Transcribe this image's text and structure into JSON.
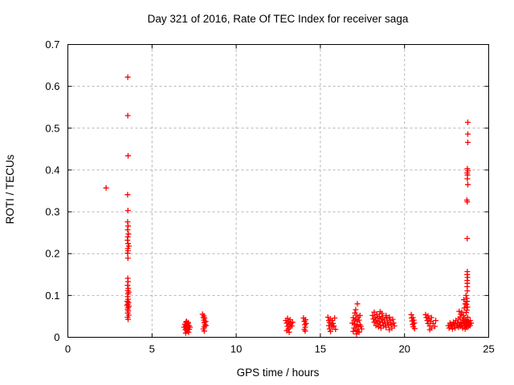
{
  "page": {
    "background": "#ffffff"
  },
  "chart_data": {
    "type": "scatter",
    "title": "Day 321 of 2016, Rate Of TEC Index for receiver saga",
    "xlabel": "GPS time / hours",
    "ylabel": "ROTI / TECUs",
    "xlim": [
      0,
      25
    ],
    "ylim": [
      0,
      0.7
    ],
    "xticks": [
      {
        "value": 0,
        "label": "0"
      },
      {
        "value": 5,
        "label": "5"
      },
      {
        "value": 10,
        "label": "10"
      },
      {
        "value": 15,
        "label": "15"
      },
      {
        "value": 20,
        "label": "20"
      },
      {
        "value": 25,
        "label": "25"
      }
    ],
    "yticks": [
      {
        "value": 0,
        "label": "0"
      },
      {
        "value": 0.1,
        "label": "0.1"
      },
      {
        "value": 0.2,
        "label": "0.2"
      },
      {
        "value": 0.3,
        "label": "0.3"
      },
      {
        "value": 0.4,
        "label": "0.4"
      },
      {
        "value": 0.5,
        "label": "0.5"
      },
      {
        "value": 0.6,
        "label": "0.6"
      },
      {
        "value": 0.7,
        "label": "0.7"
      }
    ],
    "grid": true,
    "legend_position": "none",
    "marker": {
      "shape": "plus",
      "color": "#ff0000",
      "size": 7
    },
    "axis_color": "#000000",
    "grid_color": "#b3b3b3",
    "series": [
      {
        "name": "ROTI",
        "points": [
          [
            2.27,
            0.357
          ],
          [
            3.56,
            0.622
          ],
          [
            3.56,
            0.53
          ],
          [
            3.58,
            0.434
          ],
          [
            3.55,
            0.341
          ],
          [
            3.57,
            0.303
          ],
          [
            3.55,
            0.276
          ],
          [
            3.58,
            0.266
          ],
          [
            3.55,
            0.257
          ],
          [
            3.6,
            0.247
          ],
          [
            3.56,
            0.24
          ],
          [
            3.54,
            0.232
          ],
          [
            3.58,
            0.224
          ],
          [
            3.62,
            0.218
          ],
          [
            3.56,
            0.212
          ],
          [
            3.57,
            0.207
          ],
          [
            3.55,
            0.201
          ],
          [
            3.57,
            0.189
          ],
          [
            3.56,
            0.141
          ],
          [
            3.58,
            0.133
          ],
          [
            3.55,
            0.124
          ],
          [
            3.59,
            0.117
          ],
          [
            3.56,
            0.112
          ],
          [
            3.61,
            0.108
          ],
          [
            3.57,
            0.104
          ],
          [
            3.55,
            0.097
          ],
          [
            3.58,
            0.091
          ],
          [
            3.53,
            0.086
          ],
          [
            3.6,
            0.083
          ],
          [
            3.56,
            0.079
          ],
          [
            3.51,
            0.076
          ],
          [
            3.63,
            0.074
          ],
          [
            3.57,
            0.071
          ],
          [
            3.55,
            0.067
          ],
          [
            3.59,
            0.063
          ],
          [
            3.56,
            0.058
          ],
          [
            3.61,
            0.053
          ],
          [
            3.55,
            0.048
          ],
          [
            3.58,
            0.043
          ],
          [
            6.9,
            0.024
          ],
          [
            6.95,
            0.031
          ],
          [
            6.98,
            0.018
          ],
          [
            7.0,
            0.027
          ],
          [
            7.02,
            0.036
          ],
          [
            7.05,
            0.022
          ],
          [
            7.07,
            0.015
          ],
          [
            7.1,
            0.029
          ],
          [
            7.1,
            0.02
          ],
          [
            7.12,
            0.033
          ],
          [
            7.15,
            0.025
          ],
          [
            7.17,
            0.012
          ],
          [
            7.2,
            0.028
          ],
          [
            7.22,
            0.019
          ],
          [
            7.25,
            0.024
          ],
          [
            7.05,
            0.038
          ],
          [
            7.0,
            0.01
          ],
          [
            7.15,
            0.035
          ],
          [
            8.0,
            0.055
          ],
          [
            8.05,
            0.047
          ],
          [
            8.08,
            0.041
          ],
          [
            8.1,
            0.035
          ],
          [
            8.12,
            0.046
          ],
          [
            8.15,
            0.03
          ],
          [
            8.1,
            0.025
          ],
          [
            8.05,
            0.02
          ],
          [
            8.18,
            0.038
          ],
          [
            8.1,
            0.015
          ],
          [
            8.2,
            0.028
          ],
          [
            8.08,
            0.051
          ],
          [
            12.95,
            0.04
          ],
          [
            13.0,
            0.034
          ],
          [
            13.05,
            0.045
          ],
          [
            13.05,
            0.026
          ],
          [
            13.1,
            0.038
          ],
          [
            13.1,
            0.02
          ],
          [
            13.15,
            0.03
          ],
          [
            13.15,
            0.012
          ],
          [
            13.2,
            0.042
          ],
          [
            13.2,
            0.024
          ],
          [
            13.25,
            0.033
          ],
          [
            13.3,
            0.027
          ],
          [
            13.0,
            0.016
          ],
          [
            13.35,
            0.036
          ],
          [
            14.0,
            0.046
          ],
          [
            14.05,
            0.038
          ],
          [
            14.08,
            0.03
          ],
          [
            14.1,
            0.024
          ],
          [
            14.12,
            0.042
          ],
          [
            14.15,
            0.033
          ],
          [
            14.1,
            0.015
          ],
          [
            14.05,
            0.019
          ],
          [
            15.45,
            0.048
          ],
          [
            15.5,
            0.04
          ],
          [
            15.5,
            0.028
          ],
          [
            15.55,
            0.035
          ],
          [
            15.55,
            0.02
          ],
          [
            15.6,
            0.044
          ],
          [
            15.65,
            0.03
          ],
          [
            15.7,
            0.024
          ],
          [
            15.7,
            0.04
          ],
          [
            15.75,
            0.033
          ],
          [
            15.8,
            0.027
          ],
          [
            15.9,
            0.019
          ],
          [
            15.6,
            0.014
          ],
          [
            15.85,
            0.046
          ],
          [
            17.2,
            0.08
          ],
          [
            17.1,
            0.066
          ],
          [
            17.05,
            0.058
          ],
          [
            17.15,
            0.053
          ],
          [
            16.95,
            0.047
          ],
          [
            17.25,
            0.048
          ],
          [
            17.0,
            0.041
          ],
          [
            17.1,
            0.044
          ],
          [
            17.2,
            0.038
          ],
          [
            17.3,
            0.041
          ],
          [
            16.9,
            0.034
          ],
          [
            17.05,
            0.031
          ],
          [
            17.15,
            0.028
          ],
          [
            17.25,
            0.025
          ],
          [
            17.35,
            0.03
          ],
          [
            17.0,
            0.022
          ],
          [
            17.1,
            0.018
          ],
          [
            17.2,
            0.015
          ],
          [
            17.3,
            0.012
          ],
          [
            17.4,
            0.026
          ],
          [
            17.45,
            0.02
          ],
          [
            16.95,
            0.014
          ],
          [
            17.15,
            0.008
          ],
          [
            17.35,
            0.052
          ],
          [
            18.1,
            0.052
          ],
          [
            18.15,
            0.044
          ],
          [
            18.2,
            0.06
          ],
          [
            18.2,
            0.036
          ],
          [
            18.25,
            0.048
          ],
          [
            18.3,
            0.04
          ],
          [
            18.3,
            0.028
          ],
          [
            18.35,
            0.055
          ],
          [
            18.4,
            0.033
          ],
          [
            18.4,
            0.046
          ],
          [
            18.45,
            0.025
          ],
          [
            18.5,
            0.05
          ],
          [
            18.5,
            0.038
          ],
          [
            18.55,
            0.03
          ],
          [
            18.6,
            0.044
          ],
          [
            18.6,
            0.022
          ],
          [
            18.65,
            0.057
          ],
          [
            18.7,
            0.035
          ],
          [
            18.7,
            0.048
          ],
          [
            18.75,
            0.027
          ],
          [
            18.8,
            0.041
          ],
          [
            18.85,
            0.032
          ],
          [
            18.9,
            0.052
          ],
          [
            18.9,
            0.024
          ],
          [
            18.95,
            0.045
          ],
          [
            19.0,
            0.036
          ],
          [
            19.05,
            0.028
          ],
          [
            19.1,
            0.048
          ],
          [
            19.15,
            0.04
          ],
          [
            19.2,
            0.031
          ],
          [
            19.25,
            0.022
          ],
          [
            19.3,
            0.043
          ],
          [
            19.35,
            0.034
          ],
          [
            19.4,
            0.027
          ],
          [
            18.55,
            0.061
          ],
          [
            19.1,
            0.018
          ],
          [
            20.4,
            0.054
          ],
          [
            20.42,
            0.046
          ],
          [
            20.45,
            0.039
          ],
          [
            20.48,
            0.031
          ],
          [
            20.5,
            0.047
          ],
          [
            20.52,
            0.025
          ],
          [
            20.55,
            0.041
          ],
          [
            20.58,
            0.034
          ],
          [
            20.6,
            0.021
          ],
          [
            21.25,
            0.054
          ],
          [
            21.3,
            0.047
          ],
          [
            21.35,
            0.04
          ],
          [
            21.4,
            0.051
          ],
          [
            21.4,
            0.033
          ],
          [
            21.45,
            0.044
          ],
          [
            21.5,
            0.027
          ],
          [
            21.55,
            0.038
          ],
          [
            21.6,
            0.047
          ],
          [
            21.6,
            0.022
          ],
          [
            21.7,
            0.033
          ],
          [
            21.8,
            0.026
          ],
          [
            21.85,
            0.04
          ],
          [
            21.5,
            0.018
          ],
          [
            22.6,
            0.028
          ],
          [
            22.65,
            0.022
          ],
          [
            22.7,
            0.034
          ],
          [
            22.75,
            0.026
          ],
          [
            22.8,
            0.03
          ],
          [
            22.85,
            0.02
          ],
          [
            22.9,
            0.036
          ],
          [
            22.95,
            0.028
          ],
          [
            23.0,
            0.032
          ],
          [
            23.0,
            0.022
          ],
          [
            23.05,
            0.04
          ],
          [
            23.1,
            0.028
          ],
          [
            23.15,
            0.034
          ],
          [
            23.2,
            0.024
          ],
          [
            23.2,
            0.044
          ],
          [
            23.25,
            0.03
          ],
          [
            23.3,
            0.026
          ],
          [
            23.3,
            0.048
          ],
          [
            23.35,
            0.036
          ],
          [
            23.4,
            0.028
          ],
          [
            23.4,
            0.06
          ],
          [
            23.45,
            0.04
          ],
          [
            23.45,
            0.022
          ],
          [
            23.5,
            0.032
          ],
          [
            23.5,
            0.052
          ],
          [
            23.55,
            0.026
          ],
          [
            23.55,
            0.044
          ],
          [
            23.6,
            0.034
          ],
          [
            23.6,
            0.02
          ],
          [
            23.65,
            0.042
          ],
          [
            23.65,
            0.028
          ],
          [
            23.7,
            0.036
          ],
          [
            23.7,
            0.024
          ],
          [
            23.75,
            0.048
          ],
          [
            23.75,
            0.03
          ],
          [
            23.8,
            0.038
          ],
          [
            23.8,
            0.026
          ],
          [
            23.85,
            0.032
          ],
          [
            23.9,
            0.04
          ],
          [
            23.9,
            0.028
          ],
          [
            23.95,
            0.034
          ],
          [
            23.35,
            0.055
          ],
          [
            23.25,
            0.062
          ],
          [
            23.55,
            0.07
          ],
          [
            23.6,
            0.08
          ],
          [
            23.52,
            0.09
          ],
          [
            23.76,
            0.514
          ],
          [
            23.76,
            0.486
          ],
          [
            23.76,
            0.466
          ],
          [
            23.73,
            0.403
          ],
          [
            23.76,
            0.398
          ],
          [
            23.72,
            0.393
          ],
          [
            23.74,
            0.388
          ],
          [
            23.73,
            0.379
          ],
          [
            23.76,
            0.365
          ],
          [
            23.7,
            0.328
          ],
          [
            23.73,
            0.324
          ],
          [
            23.72,
            0.236
          ],
          [
            23.73,
            0.157
          ],
          [
            23.72,
            0.15
          ],
          [
            23.74,
            0.143
          ],
          [
            23.72,
            0.136
          ],
          [
            23.73,
            0.129
          ],
          [
            23.72,
            0.121
          ],
          [
            23.73,
            0.111
          ],
          [
            23.65,
            0.1
          ],
          [
            23.7,
            0.093
          ],
          [
            23.72,
            0.086
          ],
          [
            23.68,
            0.079
          ],
          [
            23.74,
            0.072
          ],
          [
            23.7,
            0.065
          ],
          [
            23.66,
            0.059
          ]
        ]
      }
    ]
  }
}
